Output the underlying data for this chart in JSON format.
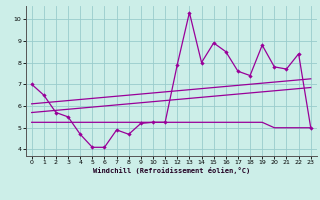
{
  "x": [
    0,
    1,
    2,
    3,
    4,
    5,
    6,
    7,
    8,
    9,
    10,
    11,
    12,
    13,
    14,
    15,
    16,
    17,
    18,
    19,
    20,
    21,
    22,
    23
  ],
  "y_main": [
    7.0,
    6.5,
    5.7,
    5.5,
    4.7,
    4.1,
    4.1,
    4.9,
    4.7,
    5.2,
    5.25,
    5.25,
    7.9,
    10.3,
    8.0,
    8.9,
    8.5,
    7.6,
    7.4,
    8.8,
    7.8,
    7.7,
    8.4,
    5.0
  ],
  "y_reg1": [
    6.1,
    6.15,
    6.2,
    6.25,
    6.3,
    6.35,
    6.4,
    6.45,
    6.5,
    6.55,
    6.6,
    6.65,
    6.7,
    6.75,
    6.8,
    6.85,
    6.9,
    6.95,
    7.0,
    7.05,
    7.1,
    7.15,
    7.2,
    7.25
  ],
  "y_reg2": [
    5.7,
    5.75,
    5.8,
    5.85,
    5.9,
    5.95,
    6.0,
    6.05,
    6.1,
    6.15,
    6.2,
    6.25,
    6.3,
    6.35,
    6.4,
    6.45,
    6.5,
    6.55,
    6.6,
    6.65,
    6.7,
    6.75,
    6.8,
    6.85
  ],
  "y_flat": [
    5.25,
    5.25,
    5.25,
    5.25,
    5.25,
    5.25,
    5.25,
    5.25,
    5.25,
    5.25,
    5.25,
    5.25,
    5.25,
    5.25,
    5.25,
    5.25,
    5.25,
    5.25,
    5.25,
    5.25,
    5.0,
    5.0,
    5.0,
    5.0
  ],
  "line_color": "#990099",
  "bg_color": "#cceee8",
  "grid_color": "#99cccc",
  "xlabel": "Windchill (Refroidissement éolien,°C)",
  "xlim": [
    -0.5,
    23.5
  ],
  "ylim": [
    3.7,
    10.6
  ],
  "yticks": [
    4,
    5,
    6,
    7,
    8,
    9,
    10
  ],
  "xticks": [
    0,
    1,
    2,
    3,
    4,
    5,
    6,
    7,
    8,
    9,
    10,
    11,
    12,
    13,
    14,
    15,
    16,
    17,
    18,
    19,
    20,
    21,
    22,
    23
  ]
}
